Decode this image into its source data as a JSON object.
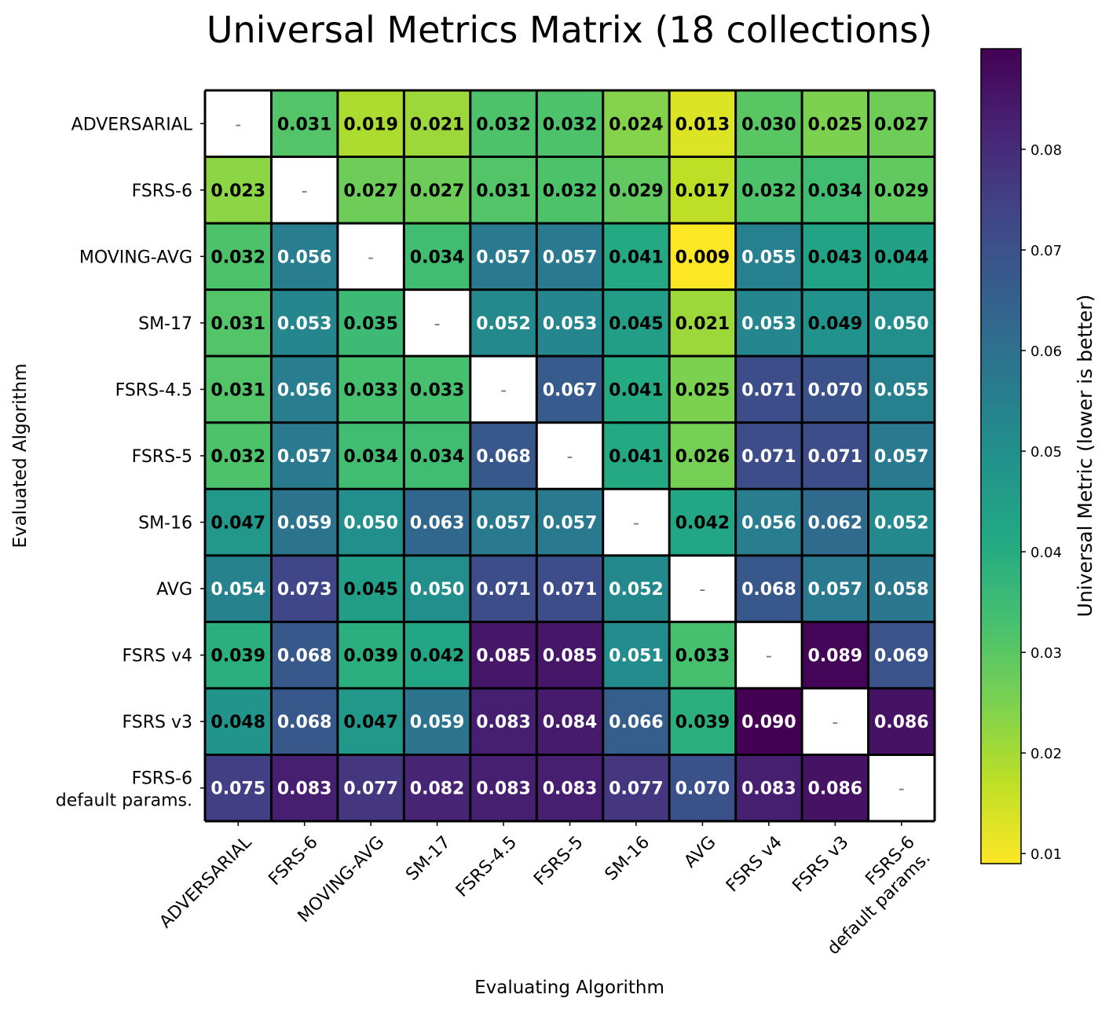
{
  "chart_data": {
    "type": "heatmap",
    "title": "Universal Metrics Matrix (18 collections)",
    "xlabel": "Evaluating Algorithm",
    "ylabel": "Evaluated Algorithm",
    "colorbar_label": "Universal Metric (lower is better)",
    "colormap": "viridis (reversed: low = yellow, high = purple)",
    "color_range": [
      0.009,
      0.09
    ],
    "colorbar_ticks": [
      "0.01",
      "0.02",
      "0.03",
      "0.04",
      "0.05",
      "0.06",
      "0.07",
      "0.08"
    ],
    "diagonal_text": "-",
    "categories": [
      "ADVERSARIAL",
      "FSRS-6",
      "MOVING-AVG",
      "SM-17",
      "FSRS-4.5",
      "FSRS-5",
      "SM-16",
      "AVG",
      "FSRS v4",
      "FSRS v3",
      "FSRS-6\ndefault params."
    ],
    "values": [
      [
        null,
        0.031,
        0.019,
        0.021,
        0.032,
        0.032,
        0.024,
        0.013,
        0.03,
        0.025,
        0.027
      ],
      [
        0.023,
        null,
        0.027,
        0.027,
        0.031,
        0.032,
        0.029,
        0.017,
        0.032,
        0.034,
        0.029
      ],
      [
        0.032,
        0.056,
        null,
        0.034,
        0.057,
        0.057,
        0.041,
        0.009,
        0.055,
        0.043,
        0.044
      ],
      [
        0.031,
        0.053,
        0.035,
        null,
        0.052,
        0.053,
        0.045,
        0.021,
        0.053,
        0.049,
        0.05
      ],
      [
        0.031,
        0.056,
        0.033,
        0.033,
        null,
        0.067,
        0.041,
        0.025,
        0.071,
        0.07,
        0.055
      ],
      [
        0.032,
        0.057,
        0.034,
        0.034,
        0.068,
        null,
        0.041,
        0.026,
        0.071,
        0.071,
        0.057
      ],
      [
        0.047,
        0.059,
        0.05,
        0.063,
        0.057,
        0.057,
        null,
        0.042,
        0.056,
        0.062,
        0.052
      ],
      [
        0.054,
        0.073,
        0.045,
        0.05,
        0.071,
        0.071,
        0.052,
        null,
        0.068,
        0.057,
        0.058
      ],
      [
        0.039,
        0.068,
        0.039,
        0.042,
        0.085,
        0.085,
        0.051,
        0.033,
        null,
        0.089,
        0.069
      ],
      [
        0.048,
        0.068,
        0.047,
        0.059,
        0.083,
        0.084,
        0.066,
        0.039,
        0.09,
        null,
        0.086
      ],
      [
        0.075,
        0.083,
        0.077,
        0.082,
        0.083,
        0.083,
        0.077,
        0.07,
        0.083,
        0.086,
        null
      ]
    ],
    "value_format": "0.000",
    "text_colors": {
      "dark": "#000000",
      "light": "#ffffff"
    }
  }
}
